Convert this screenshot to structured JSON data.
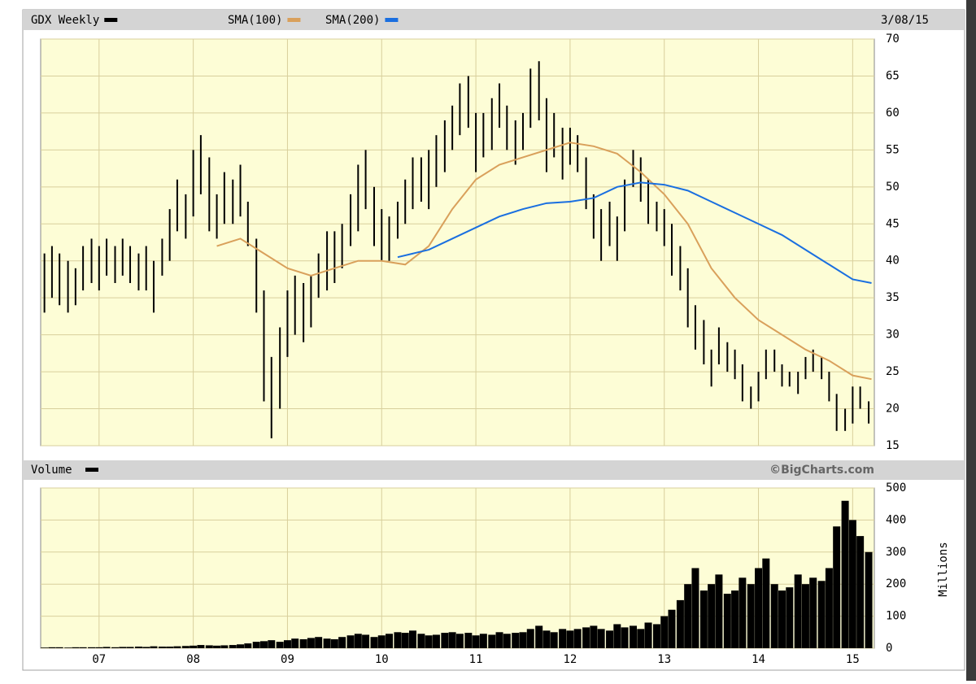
{
  "chart_data": [
    {
      "type": "hilo",
      "date": "3/08/15",
      "xlim": [
        2006.38,
        2015.23
      ],
      "xticks": [
        {
          "value": 2007,
          "label": "07"
        },
        {
          "value": 2008,
          "label": "08"
        },
        {
          "value": 2009,
          "label": "09"
        },
        {
          "value": 2010,
          "label": "10"
        },
        {
          "value": 2011,
          "label": "11"
        },
        {
          "value": 2012,
          "label": "12"
        },
        {
          "value": 2013,
          "label": "13"
        },
        {
          "value": 2014,
          "label": "14"
        },
        {
          "value": 2015,
          "label": "15"
        }
      ],
      "ylim": [
        15,
        70
      ],
      "yticks": [
        15,
        20,
        25,
        30,
        35,
        40,
        45,
        50,
        55,
        60,
        65,
        70
      ],
      "grid": true,
      "series": [
        {
          "name": "GDX Weekly",
          "color": "#000000",
          "x": [
            2006.42,
            2006.5,
            2006.58,
            2006.67,
            2006.75,
            2006.83,
            2006.92,
            2007.0,
            2007.08,
            2007.17,
            2007.25,
            2007.33,
            2007.42,
            2007.5,
            2007.58,
            2007.67,
            2007.75,
            2007.83,
            2007.92,
            2008.0,
            2008.08,
            2008.17,
            2008.25,
            2008.33,
            2008.42,
            2008.5,
            2008.58,
            2008.67,
            2008.75,
            2008.83,
            2008.92,
            2009.0,
            2009.08,
            2009.17,
            2009.25,
            2009.33,
            2009.42,
            2009.5,
            2009.58,
            2009.67,
            2009.75,
            2009.83,
            2009.92,
            2010.0,
            2010.08,
            2010.17,
            2010.25,
            2010.33,
            2010.42,
            2010.5,
            2010.58,
            2010.67,
            2010.75,
            2010.83,
            2010.92,
            2011.0,
            2011.08,
            2011.17,
            2011.25,
            2011.33,
            2011.42,
            2011.5,
            2011.58,
            2011.67,
            2011.75,
            2011.83,
            2011.92,
            2012.0,
            2012.08,
            2012.17,
            2012.25,
            2012.33,
            2012.42,
            2012.5,
            2012.58,
            2012.67,
            2012.75,
            2012.83,
            2012.92,
            2013.0,
            2013.08,
            2013.17,
            2013.25,
            2013.33,
            2013.42,
            2013.5,
            2013.58,
            2013.67,
            2013.75,
            2013.83,
            2013.92,
            2014.0,
            2014.08,
            2014.17,
            2014.25,
            2014.33,
            2014.42,
            2014.5,
            2014.58,
            2014.67,
            2014.75,
            2014.83,
            2014.92,
            2015.0,
            2015.08,
            2015.17
          ],
          "low": [
            33,
            35,
            34,
            33,
            34,
            36,
            37,
            36,
            38,
            37,
            38,
            37,
            36,
            36,
            33,
            38,
            40,
            44,
            43,
            46,
            49,
            44,
            43,
            45,
            45,
            46,
            42,
            33,
            21,
            16,
            20,
            27,
            30,
            29,
            31,
            35,
            36,
            37,
            39,
            42,
            44,
            47,
            42,
            40,
            40,
            43,
            45,
            47,
            48,
            47,
            50,
            52,
            55,
            57,
            58,
            52,
            54,
            55,
            58,
            55,
            53,
            55,
            58,
            59,
            52,
            54,
            51,
            53,
            52,
            47,
            43,
            40,
            42,
            40,
            44,
            50,
            48,
            45,
            44,
            42,
            38,
            36,
            31,
            28,
            26,
            23,
            26,
            25,
            24,
            21,
            20,
            21,
            24,
            25,
            23,
            23,
            22,
            24,
            25,
            24,
            21,
            17,
            17,
            18,
            20,
            18
          ],
          "high": [
            41,
            42,
            41,
            40,
            39,
            42,
            43,
            42,
            43,
            42,
            43,
            42,
            41,
            42,
            40,
            43,
            47,
            51,
            49,
            55,
            57,
            54,
            49,
            52,
            51,
            53,
            48,
            43,
            36,
            27,
            31,
            36,
            38,
            37,
            38,
            41,
            44,
            44,
            45,
            49,
            53,
            55,
            50,
            47,
            46,
            48,
            51,
            54,
            54,
            55,
            57,
            59,
            61,
            64,
            65,
            60,
            60,
            62,
            64,
            61,
            59,
            60,
            66,
            67,
            62,
            60,
            58,
            58,
            57,
            54,
            49,
            47,
            48,
            46,
            51,
            55,
            54,
            51,
            48,
            47,
            45,
            42,
            39,
            34,
            32,
            28,
            31,
            29,
            28,
            26,
            23,
            25,
            28,
            28,
            26,
            25,
            25,
            27,
            28,
            27,
            25,
            22,
            20,
            23,
            23,
            21
          ]
        },
        {
          "name": "SMA(100)",
          "type": "line",
          "color": "#d9a05b",
          "x": [
            2008.25,
            2008.5,
            2008.75,
            2009.0,
            2009.25,
            2009.5,
            2009.75,
            2010.0,
            2010.25,
            2010.5,
            2010.75,
            2011.0,
            2011.25,
            2011.5,
            2011.75,
            2012.0,
            2012.25,
            2012.5,
            2012.75,
            2013.0,
            2013.25,
            2013.5,
            2013.75,
            2014.0,
            2014.25,
            2014.5,
            2014.75,
            2015.0,
            2015.2
          ],
          "values": [
            42,
            43,
            41,
            39,
            38,
            39,
            40,
            40,
            39.5,
            42,
            47,
            51,
            53,
            54,
            55,
            56,
            55.5,
            54.5,
            52,
            49,
            45,
            39,
            35,
            32,
            30,
            28,
            26.5,
            24.5,
            24
          ]
        },
        {
          "name": "SMA(200)",
          "type": "line",
          "color": "#1a6fe0",
          "x": [
            2010.17,
            2010.5,
            2010.75,
            2011.0,
            2011.25,
            2011.5,
            2011.75,
            2012.0,
            2012.25,
            2012.5,
            2012.75,
            2013.0,
            2013.25,
            2013.5,
            2013.75,
            2014.0,
            2014.25,
            2014.5,
            2014.75,
            2015.0,
            2015.2
          ],
          "values": [
            40.5,
            41.5,
            43,
            44.5,
            46,
            47,
            47.8,
            48,
            48.5,
            50,
            50.6,
            50.3,
            49.5,
            48,
            46.5,
            45,
            43.5,
            41.5,
            39.5,
            37.5,
            37
          ]
        }
      ]
    },
    {
      "type": "bar",
      "title": "Volume",
      "y_label": "Millions",
      "annotation": "©BigCharts.com",
      "color": "#000000",
      "xlim": [
        2006.38,
        2015.23
      ],
      "xticks": [
        {
          "value": 2007,
          "label": "07"
        },
        {
          "value": 2008,
          "label": "08"
        },
        {
          "value": 2009,
          "label": "09"
        },
        {
          "value": 2010,
          "label": "10"
        },
        {
          "value": 2011,
          "label": "11"
        },
        {
          "value": 2012,
          "label": "12"
        },
        {
          "value": 2013,
          "label": "13"
        },
        {
          "value": 2014,
          "label": "14"
        },
        {
          "value": 2015,
          "label": "15"
        }
      ],
      "ylim": [
        0,
        500
      ],
      "yticks": [
        0,
        100,
        200,
        300,
        400,
        500
      ],
      "grid": true,
      "x": [
        2006.42,
        2006.5,
        2006.58,
        2006.67,
        2006.75,
        2006.83,
        2006.92,
        2007.0,
        2007.08,
        2007.17,
        2007.25,
        2007.33,
        2007.42,
        2007.5,
        2007.58,
        2007.67,
        2007.75,
        2007.83,
        2007.92,
        2008.0,
        2008.08,
        2008.17,
        2008.25,
        2008.33,
        2008.42,
        2008.5,
        2008.58,
        2008.67,
        2008.75,
        2008.83,
        2008.92,
        2009.0,
        2009.08,
        2009.17,
        2009.25,
        2009.33,
        2009.42,
        2009.5,
        2009.58,
        2009.67,
        2009.75,
        2009.83,
        2009.92,
        2010.0,
        2010.08,
        2010.17,
        2010.25,
        2010.33,
        2010.42,
        2010.5,
        2010.58,
        2010.67,
        2010.75,
        2010.83,
        2010.92,
        2011.0,
        2011.08,
        2011.17,
        2011.25,
        2011.33,
        2011.42,
        2011.5,
        2011.58,
        2011.67,
        2011.75,
        2011.83,
        2011.92,
        2012.0,
        2012.08,
        2012.17,
        2012.25,
        2012.33,
        2012.42,
        2012.5,
        2012.58,
        2012.67,
        2012.75,
        2012.83,
        2012.92,
        2013.0,
        2013.08,
        2013.17,
        2013.25,
        2013.33,
        2013.42,
        2013.5,
        2013.58,
        2013.67,
        2013.75,
        2013.83,
        2013.92,
        2014.0,
        2014.08,
        2014.17,
        2014.25,
        2014.33,
        2014.42,
        2014.5,
        2014.58,
        2014.67,
        2014.75,
        2014.83,
        2014.92,
        2015.0,
        2015.08,
        2015.17
      ],
      "values": [
        2,
        3,
        3,
        2,
        3,
        3,
        3,
        3,
        4,
        3,
        4,
        4,
        5,
        4,
        6,
        5,
        5,
        6,
        7,
        8,
        10,
        9,
        8,
        9,
        10,
        12,
        15,
        20,
        22,
        25,
        20,
        25,
        30,
        28,
        32,
        35,
        30,
        28,
        35,
        40,
        45,
        42,
        35,
        40,
        45,
        50,
        48,
        55,
        45,
        40,
        42,
        48,
        50,
        45,
        48,
        40,
        45,
        42,
        50,
        45,
        48,
        50,
        60,
        70,
        55,
        50,
        60,
        55,
        60,
        65,
        70,
        60,
        55,
        75,
        65,
        70,
        60,
        80,
        75,
        100,
        120,
        150,
        200,
        250,
        180,
        200,
        230,
        170,
        180,
        220,
        200,
        250,
        280,
        200,
        180,
        190,
        230,
        200,
        220,
        210,
        250,
        380,
        460,
        400,
        350,
        300
      ]
    }
  ]
}
